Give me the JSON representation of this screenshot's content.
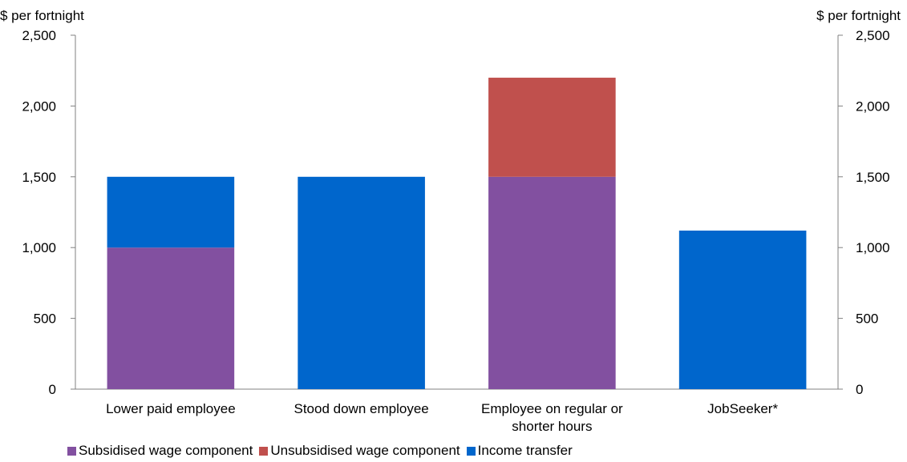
{
  "chart_data": {
    "type": "bar",
    "stacked": true,
    "y_unit_label_left": "$ per fortnight",
    "y_unit_label_right": "$ per fortnight",
    "ylim": [
      0,
      2500
    ],
    "yticks": [
      0,
      500,
      1000,
      1500,
      2000,
      2500
    ],
    "ytick_labels": [
      "0",
      "500",
      "1,000",
      "1,500",
      "2,000",
      "2,500"
    ],
    "categories": [
      [
        "Lower paid employee"
      ],
      [
        "Stood down employee"
      ],
      [
        "Employee on regular or",
        "shorter hours"
      ],
      [
        "JobSeeker*"
      ]
    ],
    "series": [
      {
        "name": "Subsidised wage component",
        "color": "#8250A0",
        "values": [
          1000,
          0,
          1500,
          0
        ]
      },
      {
        "name": "Unsubsidised wage component",
        "color": "#C0504D",
        "values": [
          0,
          0,
          700,
          0
        ]
      },
      {
        "name": "Income transfer",
        "color": "#0066CC",
        "values": [
          500,
          1500,
          0,
          1120
        ]
      }
    ],
    "legend_position": "bottom-left",
    "grid": false
  }
}
